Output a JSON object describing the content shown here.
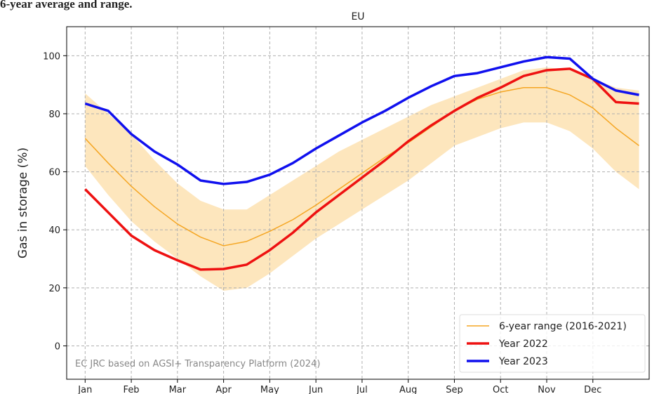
{
  "chart_data": {
    "type": "line",
    "title": "6-year average and range.",
    "subtitle": "EU",
    "y_label": "Gas in storage (%)",
    "annotation": "EC JRC based on AGSI+ Transparency Platform (2024)",
    "x": [
      0,
      0.5,
      1,
      1.5,
      2,
      2.5,
      3,
      3.5,
      4,
      4.5,
      5,
      5.5,
      6,
      6.5,
      7,
      7.5,
      8,
      8.5,
      9,
      9.5,
      10,
      10.5,
      11,
      11.5,
      12
    ],
    "xlim": [
      -0.4,
      12.22
    ],
    "xticks": [
      {
        "value": 0,
        "label": "Jan"
      },
      {
        "value": 1,
        "label": "Feb"
      },
      {
        "value": 2,
        "label": "Mar"
      },
      {
        "value": 3,
        "label": "Apr"
      },
      {
        "value": 4,
        "label": "May"
      },
      {
        "value": 5,
        "label": "Jun"
      },
      {
        "value": 6,
        "label": "Jul"
      },
      {
        "value": 7,
        "label": "Aug"
      },
      {
        "value": 8,
        "label": "Sep"
      },
      {
        "value": 9,
        "label": "Oct"
      },
      {
        "value": 10,
        "label": "Nov"
      },
      {
        "value": 11,
        "label": "Dec"
      }
    ],
    "ylim": [
      -11.5,
      110
    ],
    "yticks": [
      0,
      20,
      40,
      60,
      80,
      100
    ],
    "grid": true,
    "legend": "lower right",
    "band": {
      "color": "#fde6bd",
      "upper": [
        87,
        80,
        73,
        64,
        56,
        50,
        47,
        47,
        52,
        57,
        62,
        67,
        71,
        75,
        79,
        83,
        86,
        89,
        92,
        95,
        96,
        95,
        92,
        89,
        88
      ],
      "lower": [
        62,
        52,
        43,
        36,
        30,
        24,
        19,
        20,
        25,
        31,
        37,
        42,
        47,
        52,
        57,
        63,
        69,
        72,
        75,
        77,
        77,
        74,
        68,
        60,
        54
      ]
    },
    "series": [
      {
        "name": "6-year range (2016-2021)",
        "color": "#f5a623",
        "width": 1.5,
        "values": [
          71.5,
          63,
          55,
          48,
          42,
          37.5,
          34.5,
          36,
          39.5,
          43.5,
          48.5,
          54,
          59.5,
          65,
          70,
          75.5,
          81,
          85,
          87.5,
          89,
          89,
          86.5,
          82,
          75,
          69
        ]
      },
      {
        "name": "Year 2022",
        "color": "#ee1111",
        "width": 3.5,
        "values": [
          54,
          46,
          38,
          33,
          29.5,
          26.3,
          26.5,
          28,
          33,
          39,
          46,
          52,
          58,
          64,
          70.5,
          76,
          81,
          85.5,
          89,
          93,
          95,
          95.5,
          92,
          84,
          83.5
        ]
      },
      {
        "name": "Year 2023",
        "color": "#1010ee",
        "width": 3.5,
        "values": [
          83.5,
          81,
          73,
          67,
          62.5,
          57,
          55.8,
          56.5,
          59,
          63,
          68,
          72.5,
          77,
          81,
          85.5,
          89.5,
          93,
          94,
          96,
          98,
          99.5,
          99,
          92,
          88,
          86.5
        ]
      }
    ]
  }
}
